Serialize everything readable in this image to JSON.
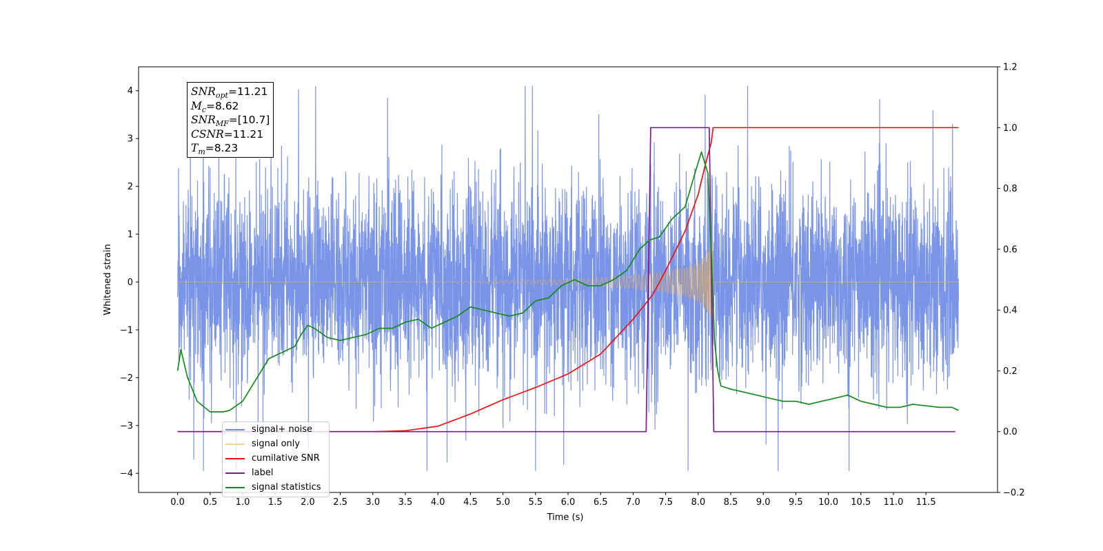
{
  "chart_data": {
    "type": "line",
    "xlabel": "Time (s)",
    "ylabel": "Whitened strain",
    "xlim": [
      -0.6,
      12.6
    ],
    "ylim": [
      -4.4,
      4.5
    ],
    "y2lim": [
      -0.2,
      1.2
    ],
    "x_ticks": [
      "0.0",
      "0.5",
      "1.0",
      "1.5",
      "2.0",
      "2.5",
      "3.0",
      "3.5",
      "4.0",
      "4.5",
      "5.0",
      "5.5",
      "6.0",
      "6.5",
      "7.0",
      "7.5",
      "8.0",
      "8.5",
      "9.0",
      "9.5",
      "10.0",
      "10.5",
      "11.0",
      "11.5"
    ],
    "y_ticks": [
      "-4",
      "-3",
      "-2",
      "-1",
      "0",
      "1",
      "2",
      "3",
      "4"
    ],
    "y2_ticks": [
      "-0.2",
      "0.0",
      "0.2",
      "0.4",
      "0.6",
      "0.8",
      "1.0",
      "1.2"
    ],
    "annotation": {
      "snr_opt": "=11.21",
      "mc": "=8.62",
      "snr_mf": "=[10.7]",
      "csnr": "=11.21",
      "tm": "=8.23"
    },
    "legend_position": "lower left",
    "series": [
      {
        "name": "signal+ noise",
        "color": "#6b88e6",
        "axis": "left",
        "description": "noise band, approx 1.0 std, spikes to about 4.1",
        "envelope_x": [
          0,
          12
        ],
        "envelope_y": [
          -1.5,
          1.5
        ]
      },
      {
        "name": "signal only",
        "color": "#f5b041",
        "axis": "left",
        "description": "chirp growing from 0 to amplitude 1.0 at 8.23 s",
        "x": [
          0,
          3,
          4,
          5,
          6,
          6.5,
          7,
          7.5,
          7.8,
          8.0,
          8.1,
          8.2,
          8.23
        ],
        "amplitude": [
          0,
          0.005,
          0.015,
          0.03,
          0.06,
          0.09,
          0.14,
          0.22,
          0.3,
          0.42,
          0.55,
          0.75,
          1.0
        ]
      },
      {
        "name": "cumilative SNR",
        "color": "#ee1111",
        "axis": "right",
        "x": [
          0,
          3.0,
          3.5,
          4.0,
          4.5,
          5.0,
          5.5,
          6.0,
          6.5,
          7.0,
          7.3,
          7.5,
          7.8,
          8.0,
          8.1,
          8.2,
          8.23,
          12.0
        ],
        "y": [
          0.0,
          0.0,
          0.003,
          0.018,
          0.058,
          0.105,
          0.145,
          0.19,
          0.255,
          0.37,
          0.45,
          0.53,
          0.66,
          0.78,
          0.87,
          0.95,
          1.0,
          1.0
        ]
      },
      {
        "name": "label",
        "color": "#7b1a90",
        "axis": "right",
        "x": [
          0,
          7.2,
          7.27,
          8.17,
          8.24,
          11.95
        ],
        "y": [
          0.0,
          0.0,
          1.0,
          1.0,
          0.0,
          0.0
        ]
      },
      {
        "name": "signal statistics",
        "color": "#148a1a",
        "axis": "right",
        "x": [
          0,
          0.05,
          0.15,
          0.3,
          0.5,
          0.7,
          0.8,
          1.0,
          1.2,
          1.4,
          1.6,
          1.8,
          1.9,
          2.0,
          2.1,
          2.3,
          2.5,
          2.7,
          2.9,
          3.1,
          3.3,
          3.5,
          3.7,
          3.9,
          4.1,
          4.3,
          4.5,
          4.7,
          4.9,
          5.1,
          5.3,
          5.5,
          5.7,
          5.9,
          6.1,
          6.3,
          6.5,
          6.7,
          6.9,
          7.1,
          7.25,
          7.4,
          7.6,
          7.8,
          7.95,
          8.05,
          8.15,
          8.2,
          8.25,
          8.3,
          8.35,
          8.5,
          8.7,
          8.9,
          9.1,
          9.3,
          9.5,
          9.7,
          9.9,
          10.1,
          10.3,
          10.5,
          10.7,
          10.9,
          11.1,
          11.3,
          11.5,
          11.7,
          11.9,
          12.0
        ],
        "y": [
          0.2,
          0.27,
          0.18,
          0.1,
          0.065,
          0.065,
          0.07,
          0.1,
          0.17,
          0.24,
          0.26,
          0.28,
          0.32,
          0.35,
          0.34,
          0.31,
          0.3,
          0.31,
          0.32,
          0.34,
          0.34,
          0.36,
          0.37,
          0.34,
          0.36,
          0.38,
          0.41,
          0.4,
          0.39,
          0.38,
          0.39,
          0.43,
          0.44,
          0.48,
          0.5,
          0.48,
          0.48,
          0.5,
          0.53,
          0.6,
          0.63,
          0.64,
          0.7,
          0.74,
          0.85,
          0.92,
          0.85,
          0.6,
          0.3,
          0.2,
          0.15,
          0.14,
          0.13,
          0.12,
          0.11,
          0.1,
          0.1,
          0.09,
          0.1,
          0.11,
          0.12,
          0.1,
          0.09,
          0.08,
          0.08,
          0.09,
          0.085,
          0.08,
          0.08,
          0.07
        ]
      }
    ]
  }
}
